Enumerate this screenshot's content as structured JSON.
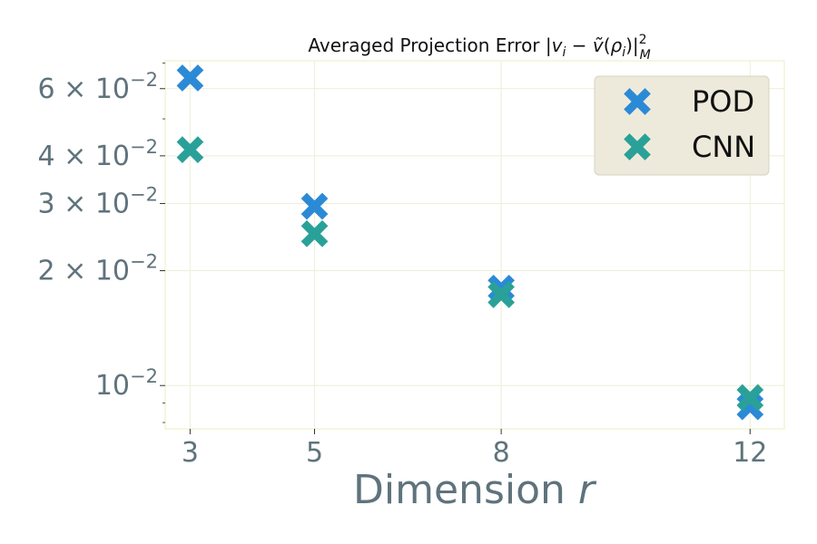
{
  "chart_data": {
    "type": "scatter",
    "title": "Averaged Projection Error |v_i − ṽ(ρ_i)|²_M",
    "title_parts": {
      "pre": "Averaged Projection Error |",
      "v": "v",
      "i1": "i",
      "minus": " − ",
      "vt": "ṽ",
      "open": "(",
      "rho": "ρ",
      "i2": "i",
      "close": ")|",
      "sup": "2",
      "sub": "M"
    },
    "xlabel": "Dimension r",
    "xlabel_parts": {
      "text": "Dimension ",
      "var": "r"
    },
    "ylabel": "",
    "x_ticks": [
      3,
      5,
      8,
      12
    ],
    "x_tick_labels": [
      "3",
      "5",
      "8",
      "12"
    ],
    "y_scale": "log",
    "y_ticks": [
      {
        "value": 0.06,
        "mant": "6",
        "times": " × ",
        "base": "10",
        "exp": "−2"
      },
      {
        "value": 0.04,
        "mant": "4",
        "times": " × ",
        "base": "10",
        "exp": "−2"
      },
      {
        "value": 0.03,
        "mant": "3",
        "times": " × ",
        "base": "10",
        "exp": "−2"
      },
      {
        "value": 0.02,
        "mant": "2",
        "times": " × ",
        "base": "10",
        "exp": "−2"
      },
      {
        "value": 0.01,
        "mant": "",
        "times": "",
        "base": "10",
        "exp": "−2"
      }
    ],
    "y_minor_ticks": [
      0.008,
      0.009,
      0.05,
      0.07
    ],
    "ylim": [
      0.0077,
      0.071
    ],
    "xlim": [
      2.6,
      12.55
    ],
    "grid": true,
    "legend_position": "top-right",
    "series": [
      {
        "name": "POD",
        "color": "#2b8ad6",
        "marker": "X",
        "x": [
          3,
          5,
          8,
          12
        ],
        "y": [
          0.064,
          0.0295,
          0.018,
          0.0088
        ]
      },
      {
        "name": "CNN",
        "color": "#2aa198",
        "marker": "X",
        "x": [
          3,
          5,
          8,
          12
        ],
        "y": [
          0.0415,
          0.025,
          0.0173,
          0.0093
        ]
      }
    ],
    "colors": {
      "background": "#ffffff",
      "grid": "#eeeed8",
      "frame": "#f0efcc",
      "legend_bg": "#eeeadb",
      "legend_border": "#d7d3c0",
      "tick_text": "#5f737c"
    }
  }
}
